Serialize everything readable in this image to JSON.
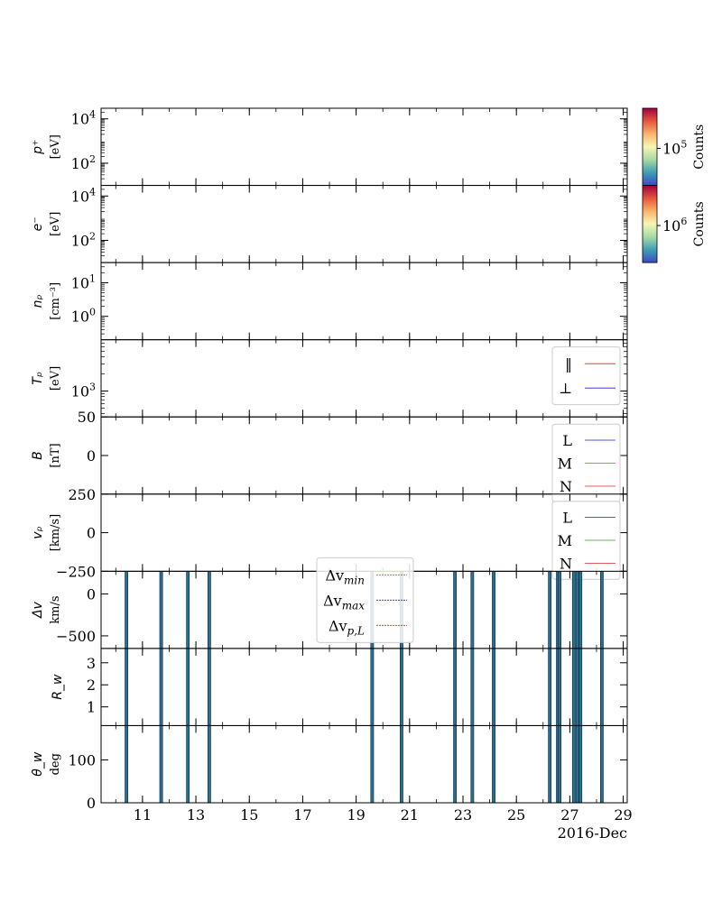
{
  "figure": {
    "date_label": "2016-Dec",
    "x_tick_labels": [
      "11",
      "13",
      "15",
      "17",
      "19",
      "21",
      "23",
      "25",
      "27",
      "29"
    ],
    "x_tick_days": [
      11,
      13,
      15,
      17,
      19,
      21,
      23,
      25,
      27,
      29
    ],
    "x_range_days": [
      9.45,
      29.15
    ]
  },
  "colorbars": [
    {
      "label": "Counts",
      "tick_label": "10",
      "tick_exp": "5",
      "colors": [
        "#3a4cc0",
        "#3f9fb4",
        "#a7d9a4",
        "#f6f6b4",
        "#fbb36b",
        "#e6553d",
        "#9e0142"
      ]
    },
    {
      "label": "Counts",
      "tick_label": "10",
      "tick_exp": "6",
      "colors": [
        "#3a4cc0",
        "#3f9fb4",
        "#a7d9a4",
        "#f6f6b4",
        "#fbb36b",
        "#e6553d",
        "#9e0142"
      ]
    }
  ],
  "chart_data": [
    {
      "type": "heatmap",
      "panel": "ion_spectrogram",
      "ylabel": [
        "p⁺",
        "[eV]"
      ],
      "yscale": "log",
      "ytick_labels": [
        {
          "base": "10",
          "exp": "2"
        },
        {
          "base": "10",
          "exp": "4"
        }
      ],
      "ytick_values": [
        100,
        10000
      ],
      "ylim": [
        10,
        30000
      ],
      "values": []
    },
    {
      "type": "heatmap",
      "panel": "electron_spectrogram",
      "ylabel": [
        "e⁻",
        "[eV]"
      ],
      "yscale": "log",
      "ytick_labels": [
        {
          "base": "10",
          "exp": "2"
        },
        {
          "base": "10",
          "exp": "4"
        }
      ],
      "ytick_values": [
        100,
        10000
      ],
      "ylim": [
        10,
        30000
      ],
      "values": []
    },
    {
      "type": "line",
      "panel": "proton_density",
      "ylabel": [
        "nₚ",
        "[cm⁻³]"
      ],
      "yscale": "log",
      "ytick_labels": [
        {
          "base": "10",
          "exp": "0"
        },
        {
          "base": "10",
          "exp": "1"
        }
      ],
      "ytick_values": [
        1,
        10
      ],
      "ylim": [
        0.2,
        40
      ],
      "series": []
    },
    {
      "type": "line",
      "panel": "proton_temperature",
      "ylabel": [
        "Tₚ",
        "[eV]"
      ],
      "yscale": "log",
      "ytick_labels": [
        {
          "base": "10",
          "exp": "3"
        }
      ],
      "ytick_values": [
        1000
      ],
      "ylim": [
        350,
        8000
      ],
      "legend": [
        {
          "name": "‖",
          "color": "#d62728",
          "dash": ""
        },
        {
          "name": "⊥",
          "color": "#1f1fdd",
          "dash": ""
        }
      ],
      "series": []
    },
    {
      "type": "line",
      "panel": "magnetic_field",
      "ylabel": [
        "B",
        "[nT]"
      ],
      "yscale": "linear",
      "ytick_labels": [
        "0",
        "50"
      ],
      "ytick_values": [
        0,
        50
      ],
      "ylim": [
        -50,
        50
      ],
      "legend": [
        {
          "name": "L",
          "color": "#1f1fdd",
          "dash": ""
        },
        {
          "name": "M",
          "color": "#2ca02c",
          "dash": ""
        },
        {
          "name": "N",
          "color": "#d62728",
          "dash": ""
        }
      ],
      "series": []
    },
    {
      "type": "line",
      "panel": "proton_velocity",
      "ylabel": [
        "vₚ",
        "[km/s]"
      ],
      "yscale": "linear",
      "ytick_labels": [
        "−250",
        "0",
        "250"
      ],
      "ytick_values": [
        -250,
        0,
        250
      ],
      "ylim": [
        -250,
        250
      ],
      "legend": [
        {
          "name": "L",
          "color": "#1f1fdd",
          "dash": ""
        },
        {
          "name": "M",
          "color": "#2ca02c",
          "dash": ""
        },
        {
          "name": "N",
          "color": "#d62728",
          "dash": ""
        }
      ],
      "series": []
    },
    {
      "type": "bar",
      "panel": "delta_v",
      "ylabel": [
        "Δv",
        "km/s"
      ],
      "yscale": "linear",
      "ytick_labels": [
        "−500",
        "0"
      ],
      "ytick_values": [
        -500,
        0
      ],
      "ylim": [
        -650,
        270
      ],
      "legend": [
        {
          "name": "Δv",
          "sub": "min",
          "color": "#2ca02c",
          "dash": "2,1"
        },
        {
          "name": "Δv",
          "sub": "max",
          "color": "#1f1fdd",
          "dash": "2,1"
        },
        {
          "name": "Δv",
          "sub": "p,L",
          "color": "#d62728",
          "dash": "2,1"
        }
      ],
      "event_days": [
        10.4,
        11.7,
        12.7,
        13.5,
        19.6,
        20.7,
        22.7,
        23.35,
        24.15,
        26.25,
        26.55,
        26.62,
        27.15,
        27.28,
        27.4,
        28.2
      ],
      "series": []
    },
    {
      "type": "bar",
      "panel": "walen_ratio",
      "ylabel": [
        "R_w"
      ],
      "yscale": "linear",
      "ytick_labels": [
        "1",
        "2",
        "3"
      ],
      "ytick_values": [
        1,
        2,
        3
      ],
      "ylim": [
        0.15,
        3.65
      ],
      "event_days": [
        10.4,
        11.7,
        12.7,
        13.5,
        19.6,
        20.7,
        22.7,
        23.35,
        24.15,
        26.25,
        26.55,
        26.62,
        27.15,
        27.28,
        27.4,
        28.2
      ]
    },
    {
      "type": "bar",
      "panel": "walen_angle",
      "ylabel": [
        "θ_w",
        "deg"
      ],
      "yscale": "linear",
      "ytick_labels": [
        "0",
        "100"
      ],
      "ytick_values": [
        0,
        100
      ],
      "ylim": [
        0,
        180
      ],
      "event_days": [
        10.4,
        11.7,
        12.7,
        13.5,
        19.6,
        20.7,
        22.7,
        23.35,
        24.15,
        26.25,
        26.55,
        26.62,
        27.15,
        27.28,
        27.4,
        28.2
      ]
    }
  ]
}
